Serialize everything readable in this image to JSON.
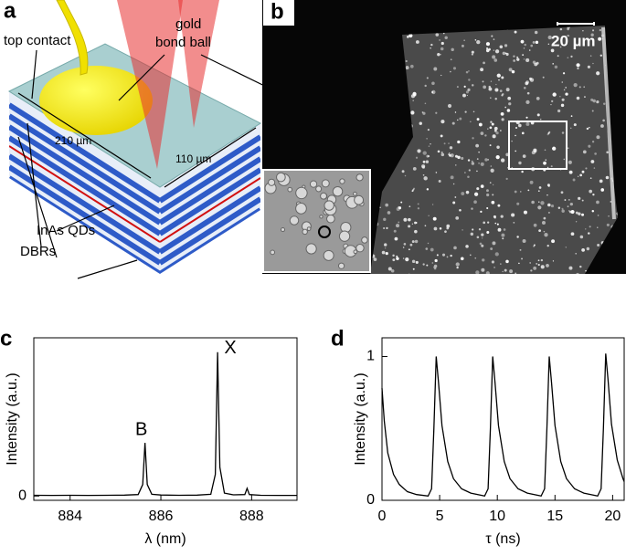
{
  "panels": {
    "a": {
      "label": "a",
      "top_contact": "top contact",
      "bond_ball_line1": "gold",
      "bond_ball_line2": "bond ball",
      "length": "210 µm",
      "width": "110 µm",
      "qds": "InAs QDs",
      "dbrs": "DBRs"
    },
    "b": {
      "label": "b",
      "scale_bar": "20 µm"
    }
  },
  "chart_data": [
    {
      "type": "line",
      "panel_label": "c",
      "x_label": "λ (nm)",
      "y_label": "Intensity (a.u.)",
      "color": "#000000",
      "annotations": [
        "B",
        "X"
      ],
      "x": [
        883.2,
        883.6,
        884.0,
        884.4,
        884.8,
        885.2,
        885.5,
        885.6,
        885.65,
        885.7,
        885.8,
        886.0,
        886.4,
        886.8,
        887.1,
        887.2,
        887.25,
        887.3,
        887.4,
        887.6,
        887.85,
        887.9,
        887.95,
        888.2,
        888.6,
        889.0
      ],
      "values": [
        0.005,
        0.004,
        0.005,
        0.004,
        0.005,
        0.006,
        0.01,
        0.08,
        0.37,
        0.08,
        0.012,
        0.007,
        0.005,
        0.006,
        0.012,
        0.15,
        1.0,
        0.2,
        0.02,
        0.008,
        0.01,
        0.053,
        0.01,
        0.005,
        0.004,
        0.004
      ],
      "xlim": [
        883.2,
        889.0
      ],
      "xticks": [
        884,
        886,
        888
      ],
      "ylim": [
        -0.03,
        1.1
      ],
      "yticks": [
        0
      ]
    },
    {
      "type": "line",
      "panel_label": "d",
      "x_label": "τ (ns)",
      "y_label": "Intensity (a.u.)",
      "color": "#000000",
      "x": [
        0,
        0.2,
        0.5,
        1,
        1.5,
        2.2,
        3,
        4.0,
        4.3,
        4.5,
        4.7,
        4.9,
        5.2,
        5.7,
        6.2,
        6.9,
        7.7,
        8.9,
        9.2,
        9.4,
        9.6,
        9.8,
        10.1,
        10.6,
        11.1,
        11.8,
        12.6,
        13.8,
        14.1,
        14.3,
        14.5,
        14.7,
        15.0,
        15.5,
        16.0,
        16.7,
        17.5,
        18.7,
        19.0,
        19.2,
        19.4,
        19.6,
        19.9,
        20.4,
        20.9,
        21
      ],
      "values": [
        0.78,
        0.55,
        0.33,
        0.18,
        0.11,
        0.06,
        0.04,
        0.03,
        0.08,
        0.5,
        1.0,
        0.82,
        0.52,
        0.27,
        0.15,
        0.08,
        0.05,
        0.03,
        0.08,
        0.5,
        1.0,
        0.82,
        0.52,
        0.27,
        0.15,
        0.08,
        0.05,
        0.03,
        0.08,
        0.5,
        1.0,
        0.82,
        0.52,
        0.27,
        0.15,
        0.08,
        0.05,
        0.03,
        0.08,
        0.5,
        1.02,
        0.84,
        0.53,
        0.28,
        0.15,
        0.13
      ],
      "xlim": [
        0,
        21
      ],
      "xticks": [
        0,
        5,
        10,
        15,
        20
      ],
      "ylim": [
        0,
        1.13
      ],
      "yticks": [
        0,
        1
      ]
    }
  ]
}
